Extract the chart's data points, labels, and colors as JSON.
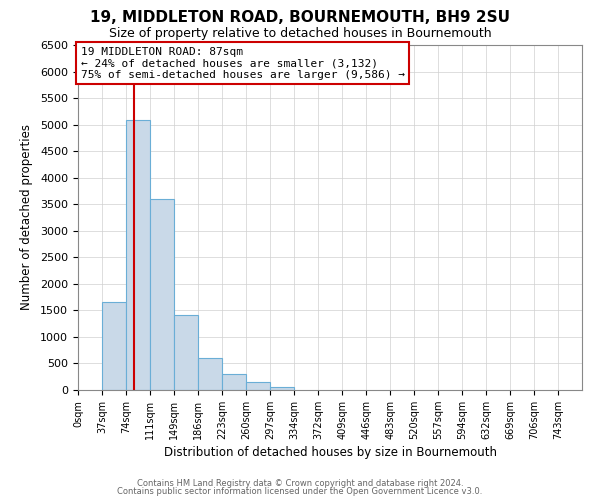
{
  "title": "19, MIDDLETON ROAD, BOURNEMOUTH, BH9 2SU",
  "subtitle": "Size of property relative to detached houses in Bournemouth",
  "xlabel": "Distribution of detached houses by size in Bournemouth",
  "ylabel": "Number of detached properties",
  "bar_left_edges": [
    0,
    37,
    74,
    111,
    149,
    186,
    223,
    260,
    297,
    334,
    372,
    409,
    446,
    483,
    520,
    557,
    594,
    632,
    669,
    706
  ],
  "bar_heights": [
    0,
    1650,
    5080,
    3600,
    1420,
    610,
    300,
    150,
    60,
    0,
    0,
    0,
    0,
    0,
    0,
    0,
    0,
    0,
    0,
    0
  ],
  "bin_width": 37,
  "bar_color": "#c9d9e8",
  "bar_edge_color": "#6aaed6",
  "ylim": [
    0,
    6500
  ],
  "yticks": [
    0,
    500,
    1000,
    1500,
    2000,
    2500,
    3000,
    3500,
    4000,
    4500,
    5000,
    5500,
    6000,
    6500
  ],
  "xtick_labels": [
    "0sqm",
    "37sqm",
    "74sqm",
    "111sqm",
    "149sqm",
    "186sqm",
    "223sqm",
    "260sqm",
    "297sqm",
    "334sqm",
    "372sqm",
    "409sqm",
    "446sqm",
    "483sqm",
    "520sqm",
    "557sqm",
    "594sqm",
    "632sqm",
    "669sqm",
    "706sqm",
    "743sqm"
  ],
  "xtick_positions": [
    0,
    37,
    74,
    111,
    149,
    186,
    223,
    260,
    297,
    334,
    372,
    409,
    446,
    483,
    520,
    557,
    594,
    632,
    669,
    706,
    743
  ],
  "vline_x": 87,
  "vline_color": "#cc0000",
  "annotation_title": "19 MIDDLETON ROAD: 87sqm",
  "annotation_line1": "← 24% of detached houses are smaller (3,132)",
  "annotation_line2": "75% of semi-detached houses are larger (9,586) →",
  "annotation_box_color": "#ffffff",
  "annotation_box_edge_color": "#cc0000",
  "footer_line1": "Contains HM Land Registry data © Crown copyright and database right 2024.",
  "footer_line2": "Contains public sector information licensed under the Open Government Licence v3.0.",
  "background_color": "#ffffff",
  "grid_color": "#d0d0d0",
  "xlim": [
    0,
    780
  ]
}
